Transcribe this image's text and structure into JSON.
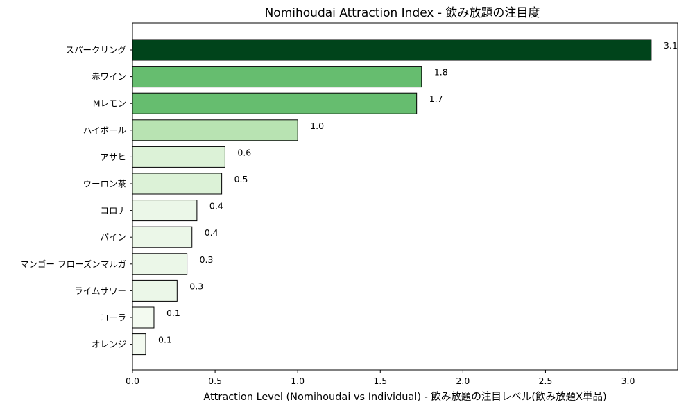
{
  "chart_data": {
    "type": "bar",
    "orientation": "horizontal",
    "title": "Nomihoudai Attraction Index - 飲み放題の注目度",
    "xlabel": "Attraction Level (Nomihoudai vs Individual) - 飲み放題の注目レベル(飲み放題X単品)",
    "ylabel": "",
    "xlim": [
      0,
      3.3
    ],
    "xticks": [
      "0.0",
      "0.5",
      "1.0",
      "1.5",
      "2.0",
      "2.5",
      "3.0"
    ],
    "grid": false,
    "categories": [
      "スパークリング",
      "赤ワイン",
      "Mレモン",
      "ハイボール",
      "アサヒ",
      "ウーロン茶",
      "コロナ",
      "パイン",
      "マンゴー フローズンマルガ",
      "ライムサワー",
      "コーラ",
      "オレンジ"
    ],
    "values": [
      3.14,
      1.75,
      1.72,
      1.0,
      0.56,
      0.54,
      0.39,
      0.36,
      0.33,
      0.27,
      0.13,
      0.08
    ],
    "data_labels": [
      "3.1",
      "1.8",
      "1.7",
      "1.0",
      "0.6",
      "0.5",
      "0.4",
      "0.4",
      "0.3",
      "0.3",
      "0.1",
      "0.1"
    ],
    "colors": [
      "#00441b",
      "#66bd6f",
      "#66bd6f",
      "#b8e3b2",
      "#dcf2d7",
      "#dcf2d7",
      "#ebf7e8",
      "#ebf7e8",
      "#ebf7e8",
      "#ebf7e8",
      "#f3faf0",
      "#f3faf0"
    ]
  }
}
